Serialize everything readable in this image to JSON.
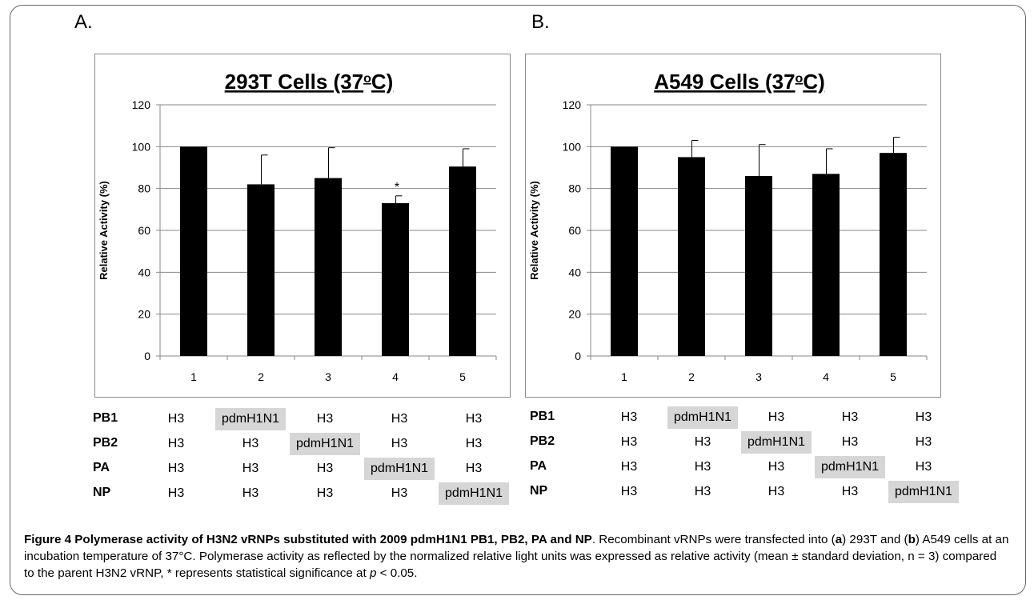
{
  "panels": [
    {
      "letter": "A.",
      "title": "293T Cells (37",
      "title_sup": "o",
      "title_end": "C)",
      "rows": [
        {
          "label": "PB1",
          "cells": [
            "H3",
            "pdmH1N1",
            "H3",
            "H3",
            "H3"
          ],
          "highlight": 1
        },
        {
          "label": "PB2",
          "cells": [
            "H3",
            "H3",
            "pdmH1N1",
            "H3",
            "H3"
          ],
          "highlight": 2
        },
        {
          "label": "PA",
          "cells": [
            "H3",
            "H3",
            "H3",
            "pdmH1N1",
            "H3"
          ],
          "highlight": 3
        },
        {
          "label": "NP",
          "cells": [
            "H3",
            "H3",
            "H3",
            "H3",
            "pdmH1N1"
          ],
          "highlight": 4
        }
      ]
    },
    {
      "letter": "B.",
      "title": "A549 Cells (37",
      "title_sup": "o",
      "title_end": "C)",
      "rows": [
        {
          "label": "PB1",
          "cells": [
            "H3",
            "pdmH1N1",
            "H3",
            "H3",
            "H3"
          ],
          "highlight": 1
        },
        {
          "label": "PB2",
          "cells": [
            "H3",
            "H3",
            "pdmH1N1",
            "H3",
            "H3"
          ],
          "highlight": 2
        },
        {
          "label": "PA",
          "cells": [
            "H3",
            "H3",
            "H3",
            "pdmH1N1",
            "H3"
          ],
          "highlight": 3
        },
        {
          "label": "NP",
          "cells": [
            "H3",
            "H3",
            "H3",
            "H3",
            "pdmH1N1"
          ],
          "highlight": 4
        }
      ]
    }
  ],
  "chart_data": [
    {
      "type": "bar",
      "title": "293T Cells (37oC)",
      "categories": [
        "1",
        "2",
        "3",
        "4",
        "5"
      ],
      "values": [
        100,
        82,
        85,
        73,
        90.5
      ],
      "errors": [
        0,
        14,
        14.5,
        3.5,
        8.5
      ],
      "annotations": [
        "",
        "",
        "",
        "*",
        ""
      ],
      "ylabel": "Relative Activity (%)",
      "xlabel": "",
      "ylim": [
        0,
        120
      ],
      "yticks": [
        0,
        20,
        40,
        60,
        80,
        100,
        120
      ],
      "grid": true,
      "bar_color": "#000000"
    },
    {
      "type": "bar",
      "title": "A549 Cells (37oC)",
      "categories": [
        "1",
        "2",
        "3",
        "4",
        "5"
      ],
      "values": [
        100,
        95,
        86,
        87,
        97
      ],
      "errors": [
        0,
        8,
        15,
        12,
        7.5
      ],
      "annotations": [
        "",
        "",
        "",
        "",
        ""
      ],
      "ylabel": "Relative Activity (%)",
      "xlabel": "",
      "ylim": [
        0,
        120
      ],
      "yticks": [
        0,
        20,
        40,
        60,
        80,
        100,
        120
      ],
      "grid": true,
      "bar_color": "#000000"
    }
  ],
  "caption": {
    "bold": "Figure 4 Polymerase activity of H3N2 vRNPs substituted with 2009 pdmH1N1 PB1, PB2, PA and NP",
    "p1": ". Recombinant vRNPs were transfected into (",
    "a": "a",
    "p2": ") 293T and (",
    "b": "b",
    "p3": ") A549 cells at an incubation temperature of 37°C. Polymerase activity as reflected by the normalized relative light units was expressed as relative activity (mean ± standard deviation, n = 3) compared to the parent H3N2 vRNP, * represents statistical significance at ",
    "p_var": "p",
    "p4": " < 0.05."
  }
}
